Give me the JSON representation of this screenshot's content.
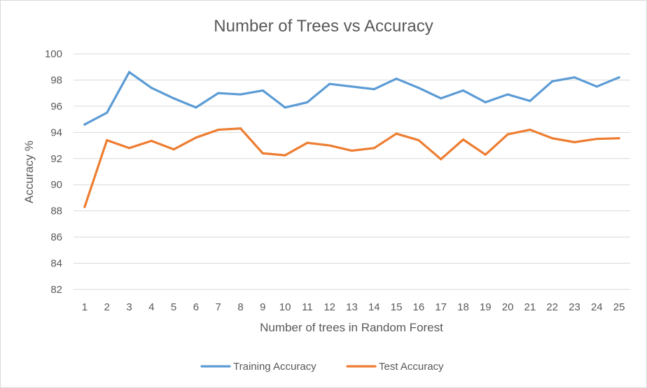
{
  "chart_data": {
    "type": "line",
    "title": "Number of Trees vs Accuracy",
    "xlabel": "Number of trees in Random Forest",
    "ylabel": "Accuracy %",
    "categories": [
      "1",
      "2",
      "3",
      "4",
      "5",
      "6",
      "7",
      "8",
      "9",
      "10",
      "11",
      "12",
      "13",
      "14",
      "15",
      "16",
      "17",
      "18",
      "19",
      "20",
      "21",
      "22",
      "23",
      "24",
      "25"
    ],
    "y_ticks": [
      "82",
      "84",
      "86",
      "88",
      "90",
      "92",
      "94",
      "96",
      "98",
      "100"
    ],
    "ylim": [
      82,
      100
    ],
    "grid": true,
    "legend_position": "bottom",
    "series": [
      {
        "name": "Training Accuracy",
        "color": "#5b9bd5",
        "values": [
          94.6,
          95.5,
          98.6,
          97.4,
          96.6,
          95.9,
          97.0,
          96.9,
          97.2,
          95.9,
          96.3,
          97.7,
          97.5,
          97.3,
          98.1,
          97.4,
          96.6,
          97.2,
          96.3,
          96.9,
          96.4,
          97.9,
          98.2,
          97.5,
          98.2
        ]
      },
      {
        "name": "Test Accuracy",
        "color": "#ed7d31",
        "values": [
          88.3,
          93.4,
          92.8,
          93.35,
          92.7,
          93.6,
          94.2,
          94.3,
          92.4,
          92.25,
          93.2,
          93.0,
          92.6,
          92.8,
          93.9,
          93.4,
          91.95,
          93.45,
          92.3,
          93.85,
          94.2,
          93.55,
          93.25,
          93.5,
          93.55
        ]
      }
    ]
  }
}
